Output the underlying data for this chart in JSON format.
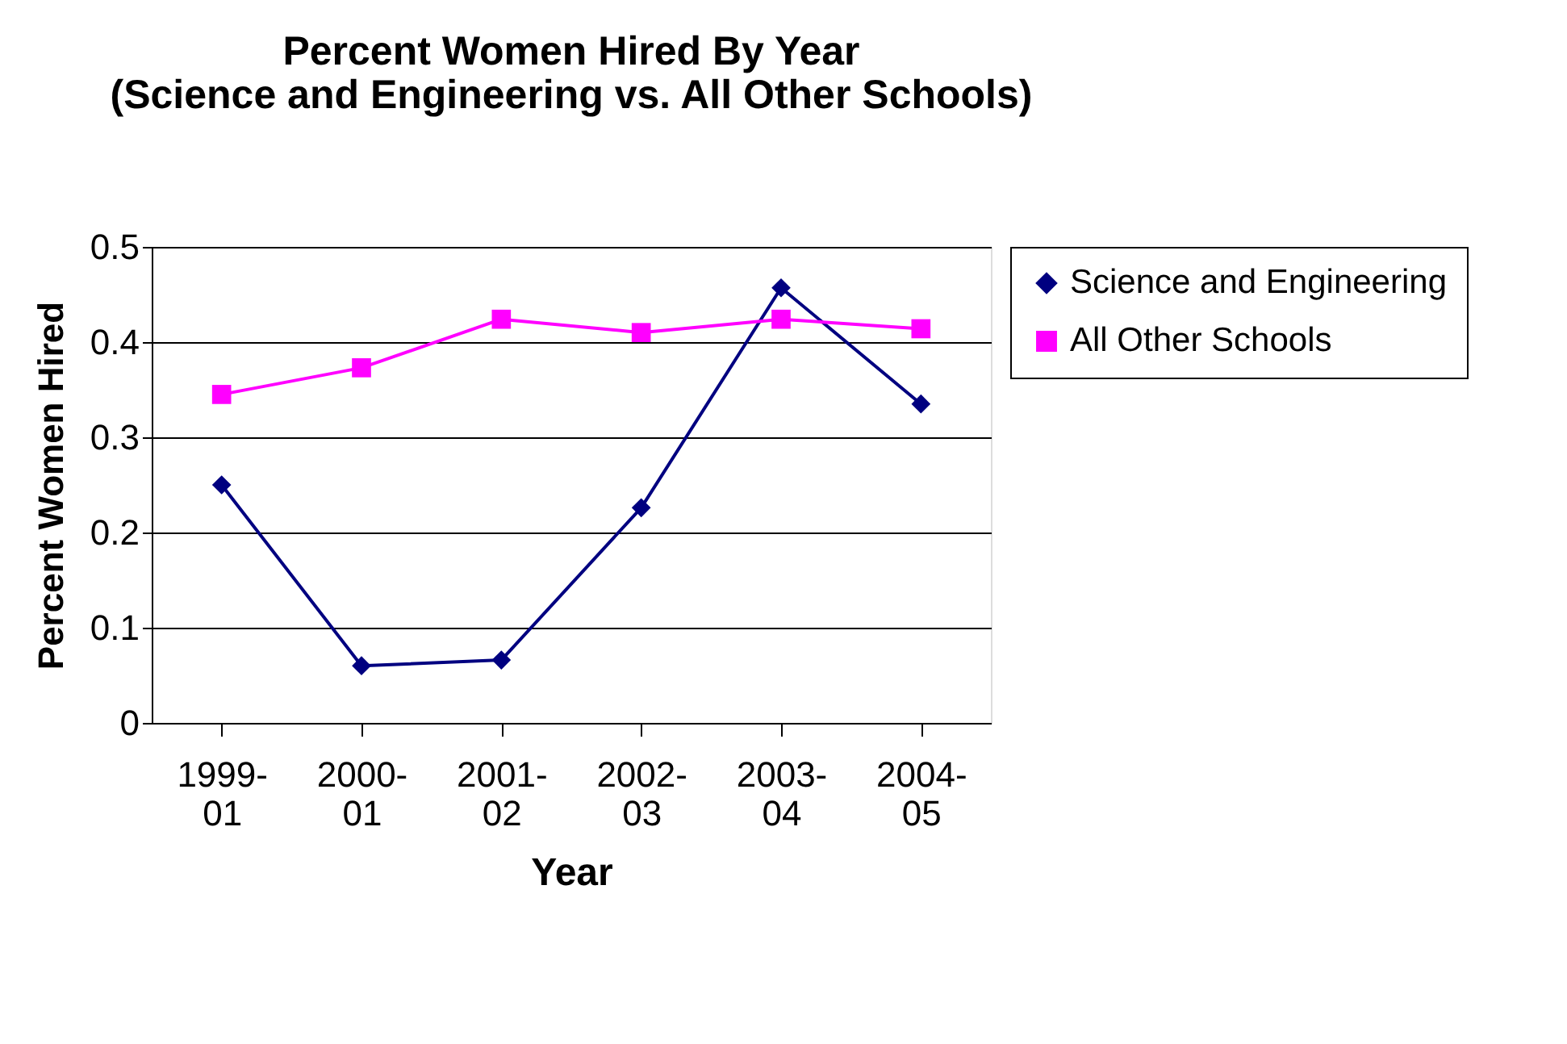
{
  "chart_data": {
    "type": "line",
    "title": [
      "Percent Women Hired By Year",
      "(Science and Engineering vs. All Other Schools)"
    ],
    "xlabel": "Year",
    "ylabel": "Percent Women Hired",
    "categories": [
      "1999-01",
      "2000-01",
      "2001-02",
      "2002-03",
      "2003-04",
      "2004-05"
    ],
    "series": [
      {
        "name": "Science and Engineering",
        "color": "#000080",
        "marker": "diamond",
        "values": [
          0.25,
          0.06,
          0.066,
          0.226,
          0.457,
          0.335
        ]
      },
      {
        "name": "All Other Schools",
        "color": "#ff00ff",
        "marker": "square",
        "values": [
          0.345,
          0.373,
          0.424,
          0.41,
          0.424,
          0.414
        ]
      }
    ],
    "ylim": [
      0,
      0.5
    ],
    "yticks": [
      0,
      0.1,
      0.2,
      0.3,
      0.4,
      0.5
    ],
    "grid": "y",
    "legend": "right"
  }
}
